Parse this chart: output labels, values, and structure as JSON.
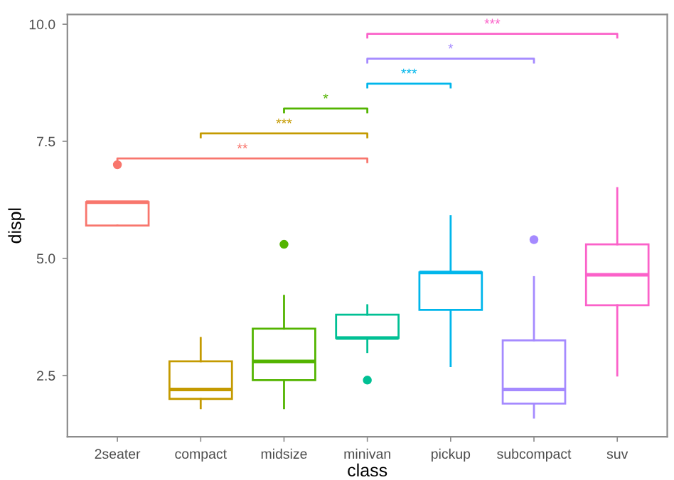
{
  "chart_data": {
    "type": "box",
    "xlabel": "class",
    "ylabel": "displ",
    "categories": [
      "2seater",
      "compact",
      "midsize",
      "minivan",
      "pickup",
      "subcompact",
      "suv"
    ],
    "colors": [
      "#f8766d",
      "#c49a00",
      "#53b400",
      "#00c094",
      "#00b6eb",
      "#a58aff",
      "#fb61c9"
    ],
    "boxes": [
      {
        "low": 5.7,
        "q1": 5.7,
        "median": 6.2,
        "q3": 6.2,
        "high": 6.2,
        "outliers": [
          7.0
        ]
      },
      {
        "low": 1.8,
        "q1": 2.0,
        "median": 2.2,
        "q3": 2.8,
        "high": 3.3
      },
      {
        "low": 1.8,
        "q1": 2.4,
        "median": 2.8,
        "q3": 3.5,
        "high": 4.2,
        "outliers": [
          5.3
        ]
      },
      {
        "low": 3.0,
        "q1": 3.3,
        "median": 3.3,
        "q3": 3.8,
        "high": 4.0,
        "outliers": [
          2.4
        ]
      },
      {
        "low": 2.7,
        "q1": 3.9,
        "median": 4.7,
        "q3": 4.7,
        "high": 5.9
      },
      {
        "low": 1.6,
        "q1": 1.9,
        "median": 2.2,
        "q3": 3.25,
        "high": 4.6,
        "outliers": [
          5.4
        ]
      },
      {
        "low": 2.5,
        "q1": 4.0,
        "median": 4.65,
        "q3": 5.3,
        "high": 6.5
      }
    ],
    "annotations": [
      "**",
      "***",
      "*",
      "***",
      "*",
      "***"
    ],
    "ylim": [
      1.19,
      10.21
    ],
    "yticks": [
      {
        "value": 2.5,
        "label": "2.5"
      },
      {
        "value": 5.0,
        "label": "5.0"
      },
      {
        "value": 7.5,
        "label": "7.5"
      },
      {
        "value": 10.0,
        "label": "10.0"
      }
    ],
    "grid": false
  }
}
